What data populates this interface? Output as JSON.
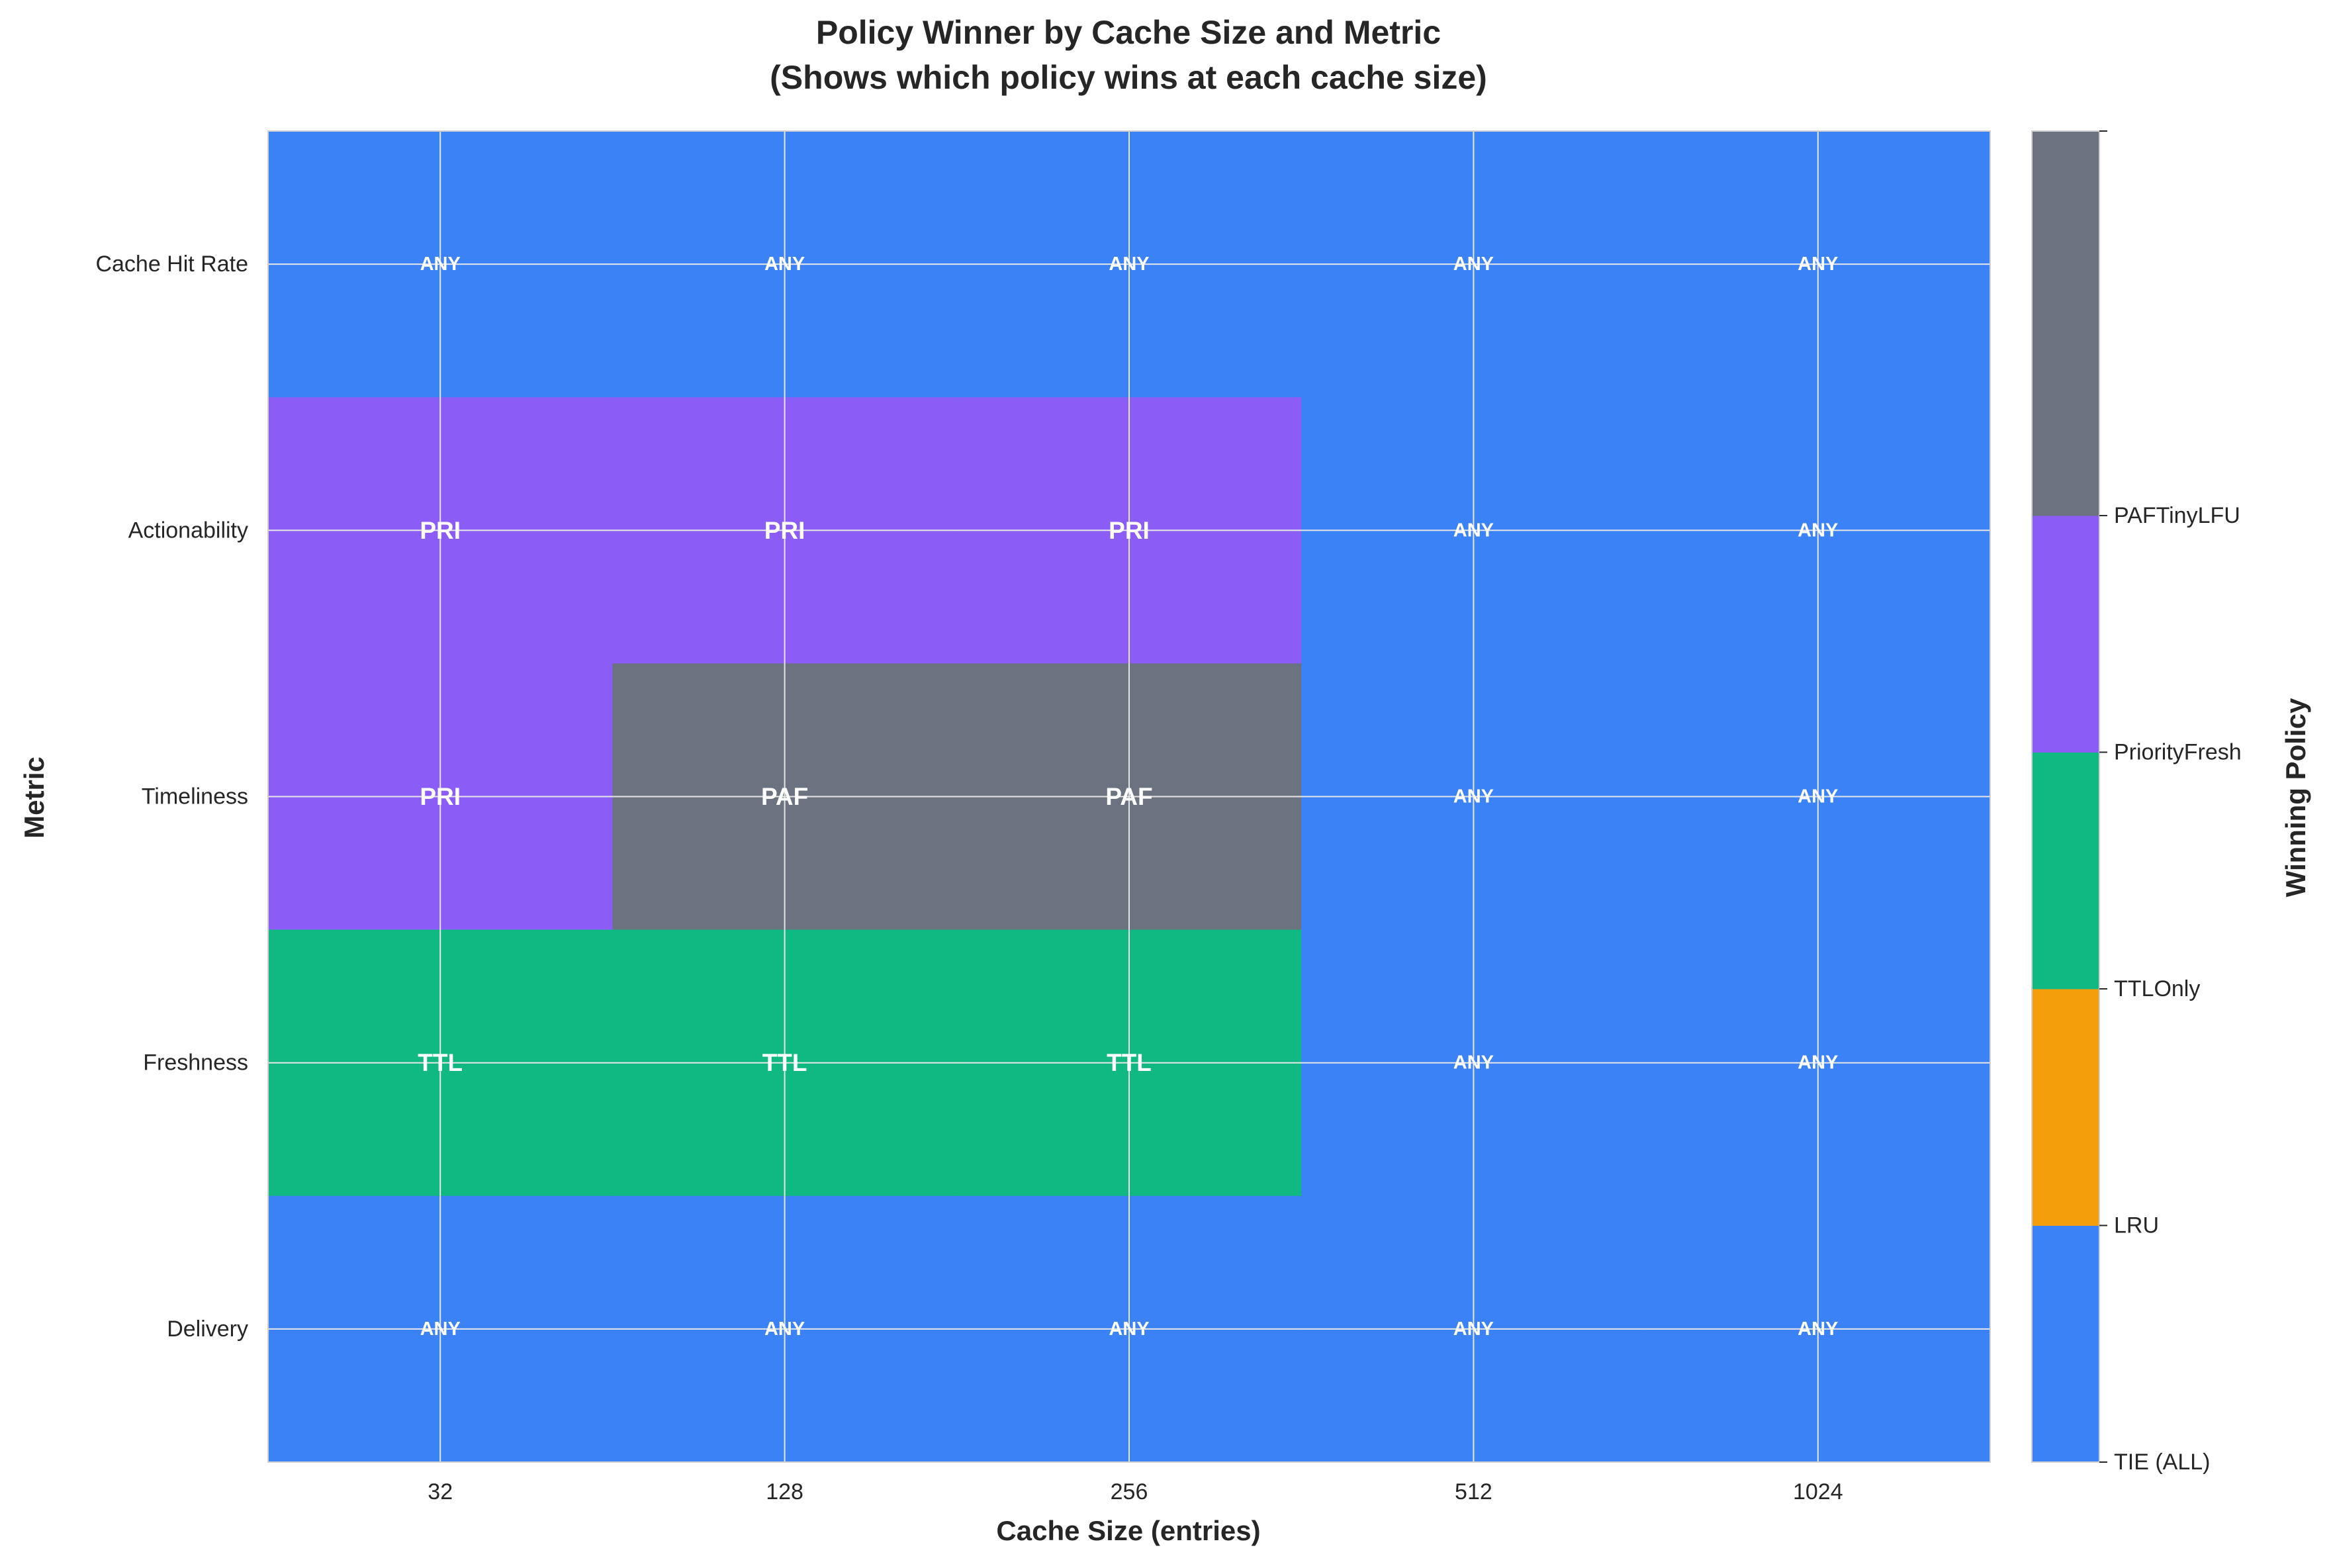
{
  "chart_data": {
    "type": "heatmap",
    "title": "Policy Winner by Cache Size and Metric",
    "subtitle": "(Shows which policy wins at each cache size)",
    "xlabel": "Cache Size (entries)",
    "ylabel": "Metric",
    "x_categories": [
      "32",
      "128",
      "256",
      "512",
      "1024"
    ],
    "y_categories": [
      "Cache Hit Rate",
      "Actionability",
      "Timeliness",
      "Freshness",
      "Delivery"
    ],
    "cells": [
      [
        "ANY",
        "ANY",
        "ANY",
        "ANY",
        "ANY"
      ],
      [
        "PRI",
        "PRI",
        "PRI",
        "ANY",
        "ANY"
      ],
      [
        "PRI",
        "PAF",
        "PAF",
        "ANY",
        "ANY"
      ],
      [
        "TTL",
        "TTL",
        "TTL",
        "ANY",
        "ANY"
      ],
      [
        "ANY",
        "ANY",
        "ANY",
        "ANY",
        "ANY"
      ]
    ],
    "code_to_policy": {
      "ANY": "TIE (ALL)",
      "TTL": "TTLOnly",
      "PRI": "PriorityFresh",
      "PAF": "PAFTinyLFU"
    },
    "colorbar": {
      "label": "Winning Policy",
      "policies": [
        "TIE (ALL)",
        "LRU",
        "TTLOnly",
        "PriorityFresh",
        "PAFTinyLFU"
      ],
      "colors": [
        "#3b82f6",
        "#f59e0b",
        "#10b981",
        "#8b5cf6",
        "#6b7280"
      ]
    },
    "grid": true
  }
}
